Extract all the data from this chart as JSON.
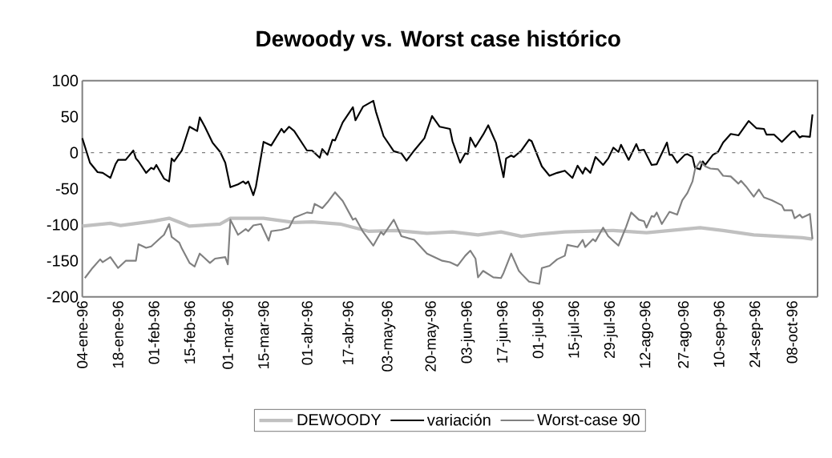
{
  "chart_data": {
    "type": "line",
    "title": "Dewoody vs. Worst case histórico",
    "xlim": [
      "1996-01-04",
      "1996-10-18"
    ],
    "ylim": [
      -200,
      100
    ],
    "yticks": [
      -200,
      -150,
      -100,
      -50,
      0,
      50,
      100
    ],
    "xticks": [
      {
        "value": "1996-01-04",
        "label": "04-ene-96"
      },
      {
        "value": "1996-01-18",
        "label": "18-ene-96"
      },
      {
        "value": "1996-02-01",
        "label": "01-feb-96"
      },
      {
        "value": "1996-02-15",
        "label": "15-feb-96"
      },
      {
        "value": "1996-03-01",
        "label": "01-mar-96"
      },
      {
        "value": "1996-03-15",
        "label": "15-mar-96"
      },
      {
        "value": "1996-04-01",
        "label": "01-abr-96"
      },
      {
        "value": "1996-04-17",
        "label": "17-abr-96"
      },
      {
        "value": "1996-05-03",
        "label": "03-may-96"
      },
      {
        "value": "1996-05-20",
        "label": "20-may-96"
      },
      {
        "value": "1996-06-03",
        "label": "03-jun-96"
      },
      {
        "value": "1996-06-17",
        "label": "17-jun-96"
      },
      {
        "value": "1996-07-01",
        "label": "01-jul-96"
      },
      {
        "value": "1996-07-15",
        "label": "15-jul-96"
      },
      {
        "value": "1996-07-29",
        "label": "29-jul-96"
      },
      {
        "value": "1996-08-12",
        "label": "12-ago-96"
      },
      {
        "value": "1996-08-27",
        "label": "27-ago-96"
      },
      {
        "value": "1996-09-10",
        "label": "10-sep-96"
      },
      {
        "value": "1996-09-24",
        "label": "24-sep-96"
      },
      {
        "value": "1996-10-08",
        "label": "08-oct-96"
      }
    ],
    "series": [
      {
        "name": "DEWOODY",
        "color": "#c0c0c0",
        "x": [
          "1996-01-04",
          "1996-01-15",
          "1996-01-19",
          "1996-02-01",
          "1996-02-07",
          "1996-02-15",
          "1996-02-27",
          "1996-03-02",
          "1996-03-15",
          "1996-03-27",
          "1996-04-03",
          "1996-04-14",
          "1996-04-25",
          "1996-05-06",
          "1996-05-18",
          "1996-05-28",
          "1996-06-07",
          "1996-06-16",
          "1996-06-24",
          "1996-07-01",
          "1996-07-11",
          "1996-07-30",
          "1996-08-12",
          "1996-09-02",
          "1996-09-11",
          "1996-09-23",
          "1996-10-12",
          "1996-10-16"
        ],
        "values": [
          -102,
          -98,
          -101,
          -95,
          -91,
          -102,
          -99,
          -91,
          -91,
          -97,
          -96,
          -99,
          -109,
          -108,
          -112,
          -110,
          -114,
          -110,
          -116,
          -113,
          -110,
          -108,
          -111,
          -104,
          -108,
          -114,
          -118,
          -120
        ]
      },
      {
        "name": "variación",
        "color": "#000000",
        "x": [
          "1996-01-04",
          "1996-01-07",
          "1996-01-10",
          "1996-01-12",
          "1996-01-15",
          "1996-01-17",
          "1996-01-18",
          "1996-01-21",
          "1996-01-24",
          "1996-01-25",
          "1996-01-26",
          "1996-01-29",
          "1996-01-31",
          "1996-02-01",
          "1996-02-02",
          "1996-02-05",
          "1996-02-07",
          "1996-02-08",
          "1996-02-09",
          "1996-02-12",
          "1996-02-15",
          "1996-02-18",
          "1996-02-19",
          "1996-02-21",
          "1996-02-24",
          "1996-02-27",
          "1996-02-29",
          "1996-03-02",
          "1996-03-05",
          "1996-03-07",
          "1996-03-08",
          "1996-03-09",
          "1996-03-11",
          "1996-03-12",
          "1996-03-15",
          "1996-03-18",
          "1996-03-22",
          "1996-03-23",
          "1996-03-25",
          "1996-03-27",
          "1996-04-01",
          "1996-04-03",
          "1996-04-06",
          "1996-04-07",
          "1996-04-09",
          "1996-04-11",
          "1996-04-12",
          "1996-04-15",
          "1996-04-19",
          "1996-04-20",
          "1996-04-23",
          "1996-04-27",
          "1996-04-28",
          "1996-05-01",
          "1996-05-05",
          "1996-05-08",
          "1996-05-10",
          "1996-05-13",
          "1996-05-17",
          "1996-05-20",
          "1996-05-23",
          "1996-05-27",
          "1996-05-28",
          "1996-05-31",
          "1996-06-02",
          "1996-06-03",
          "1996-06-04",
          "1996-06-06",
          "1996-06-09",
          "1996-06-11",
          "1996-06-14",
          "1996-06-17",
          "1996-06-18",
          "1996-06-20",
          "1996-06-21",
          "1996-06-24",
          "1996-06-27",
          "1996-06-28",
          "1996-07-02",
          "1996-07-05",
          "1996-07-08",
          "1996-07-11",
          "1996-07-14",
          "1996-07-16",
          "1996-07-18",
          "1996-07-19",
          "1996-07-21",
          "1996-07-23",
          "1996-07-26",
          "1996-07-28",
          "1996-07-30",
          "1996-08-01",
          "1996-08-02",
          "1996-08-05",
          "1996-08-08",
          "1996-08-09",
          "1996-08-11",
          "1996-08-14",
          "1996-08-16",
          "1996-08-20",
          "1996-08-21",
          "1996-08-22",
          "1996-08-24",
          "1996-08-27",
          "1996-08-28",
          "1996-08-30",
          "1996-08-31",
          "1996-09-02",
          "1996-09-03",
          "1996-09-04",
          "1996-09-07",
          "1996-09-09",
          "1996-09-11",
          "1996-09-14",
          "1996-09-17",
          "1996-09-21",
          "1996-09-24",
          "1996-09-27",
          "1996-09-28",
          "1996-10-01",
          "1996-10-04",
          "1996-10-08",
          "1996-10-09",
          "1996-10-11",
          "1996-10-12",
          "1996-10-15",
          "1996-10-16"
        ],
        "values": [
          20,
          -14,
          -27,
          -28,
          -35,
          -16,
          -10,
          -10,
          3,
          -8,
          -12,
          -28,
          -21,
          -23,
          -17,
          -36,
          -40,
          -8,
          -12,
          3,
          36,
          30,
          49,
          36,
          14,
          1,
          -14,
          -48,
          -44,
          -40,
          -43,
          -40,
          -59,
          -47,
          15,
          10,
          33,
          28,
          36,
          30,
          3,
          3,
          -7,
          5,
          -3,
          18,
          17,
          42,
          63,
          45,
          64,
          72,
          57,
          23,
          2,
          -1,
          -11,
          3,
          20,
          51,
          36,
          33,
          16,
          -14,
          -1,
          -2,
          21,
          8,
          25,
          38,
          14,
          -34,
          -8,
          -4,
          -6,
          3,
          18,
          16,
          -19,
          -32,
          -28,
          -25,
          -35,
          -18,
          -29,
          -21,
          -28,
          -6,
          -17,
          -8,
          7,
          1,
          11,
          -10,
          12,
          3,
          4,
          -17,
          -16,
          14,
          -3,
          -3,
          -14,
          -3,
          -2,
          -6,
          -21,
          -23,
          -12,
          -17,
          -3,
          1,
          14,
          26,
          24,
          44,
          34,
          33,
          25,
          25,
          15,
          29,
          30,
          21,
          23,
          22,
          53
        ]
      },
      {
        "name": "Worst-case 90",
        "color": "#808080",
        "x": [
          "1996-01-05",
          "1996-01-08",
          "1996-01-11",
          "1996-01-12",
          "1996-01-15",
          "1996-01-18",
          "1996-01-21",
          "1996-01-25",
          "1996-01-26",
          "1996-01-29",
          "1996-01-31",
          "1996-02-04",
          "1996-02-05",
          "1996-02-07",
          "1996-02-08",
          "1996-02-11",
          "1996-02-12",
          "1996-02-15",
          "1996-02-17",
          "1996-02-19",
          "1996-02-23",
          "1996-02-25",
          "1996-02-29",
          "1996-03-01",
          "1996-03-02",
          "1996-03-05",
          "1996-03-08",
          "1996-03-09",
          "1996-03-11",
          "1996-03-14",
          "1996-03-17",
          "1996-03-18",
          "1996-03-22",
          "1996-03-25",
          "1996-03-27",
          "1996-04-01",
          "1996-04-03",
          "1996-04-04",
          "1996-04-07",
          "1996-04-09",
          "1996-04-12",
          "1996-04-15",
          "1996-04-19",
          "1996-04-20",
          "1996-04-23",
          "1996-04-27",
          "1996-04-30",
          "1996-05-01",
          "1996-05-05",
          "1996-05-08",
          "1996-05-13",
          "1996-05-18",
          "1996-05-21",
          "1996-05-24",
          "1996-05-27",
          "1996-05-30",
          "1996-06-02",
          "1996-06-04",
          "1996-06-06",
          "1996-06-07",
          "1996-06-09",
          "1996-06-13",
          "1996-06-16",
          "1996-06-17",
          "1996-06-20",
          "1996-06-23",
          "1996-06-24",
          "1996-06-27",
          "1996-07-01",
          "1996-07-02",
          "1996-07-05",
          "1996-07-08",
          "1996-07-11",
          "1996-07-12",
          "1996-07-16",
          "1996-07-18",
          "1996-07-19",
          "1996-07-22",
          "1996-07-23",
          "1996-07-26",
          "1996-07-28",
          "1996-08-01",
          "1996-08-04",
          "1996-08-06",
          "1996-08-09",
          "1996-08-11",
          "1996-08-12",
          "1996-08-14",
          "1996-08-15",
          "1996-08-16",
          "1996-08-18",
          "1996-08-21",
          "1996-08-24",
          "1996-08-26",
          "1996-08-28",
          "1996-08-30",
          "1996-08-31",
          "1996-09-02",
          "1996-09-04",
          "1996-09-06",
          "1996-09-09",
          "1996-09-11",
          "1996-09-14",
          "1996-09-17",
          "1996-09-18",
          "1996-09-20",
          "1996-09-23",
          "1996-09-25",
          "1996-09-27",
          "1996-09-30",
          "1996-10-04",
          "1996-10-05",
          "1996-10-08",
          "1996-10-09",
          "1996-10-11",
          "1996-10-12",
          "1996-10-15",
          "1996-10-16"
        ],
        "values": [
          -174,
          -160,
          -148,
          -152,
          -145,
          -160,
          -150,
          -150,
          -127,
          -132,
          -130,
          -117,
          -114,
          -99,
          -117,
          -125,
          -133,
          -153,
          -158,
          -140,
          -153,
          -147,
          -145,
          -155,
          -93,
          -114,
          -106,
          -109,
          -101,
          -99,
          -122,
          -109,
          -107,
          -104,
          -90,
          -83,
          -84,
          -71,
          -77,
          -69,
          -55,
          -67,
          -93,
          -91,
          -110,
          -129,
          -110,
          -114,
          -93,
          -116,
          -121,
          -140,
          -145,
          -150,
          -152,
          -157,
          -143,
          -136,
          -147,
          -173,
          -164,
          -173,
          -174,
          -167,
          -140,
          -164,
          -168,
          -179,
          -182,
          -160,
          -157,
          -148,
          -143,
          -128,
          -131,
          -121,
          -131,
          -120,
          -123,
          -104,
          -116,
          -129,
          -103,
          -83,
          -93,
          -95,
          -104,
          -88,
          -89,
          -83,
          -99,
          -82,
          -86,
          -66,
          -56,
          -40,
          -23,
          -12,
          -19,
          -22,
          -23,
          -32,
          -33,
          -43,
          -39,
          -47,
          -61,
          -51,
          -62,
          -66,
          -73,
          -80,
          -80,
          -91,
          -86,
          -90,
          -85,
          -120
        ]
      }
    ],
    "ref_lines": [
      {
        "axis": "y",
        "value": 0,
        "color": "#808080",
        "line_style": "dashed"
      }
    ],
    "legend": "bottom",
    "grid": false,
    "marker": "none"
  }
}
